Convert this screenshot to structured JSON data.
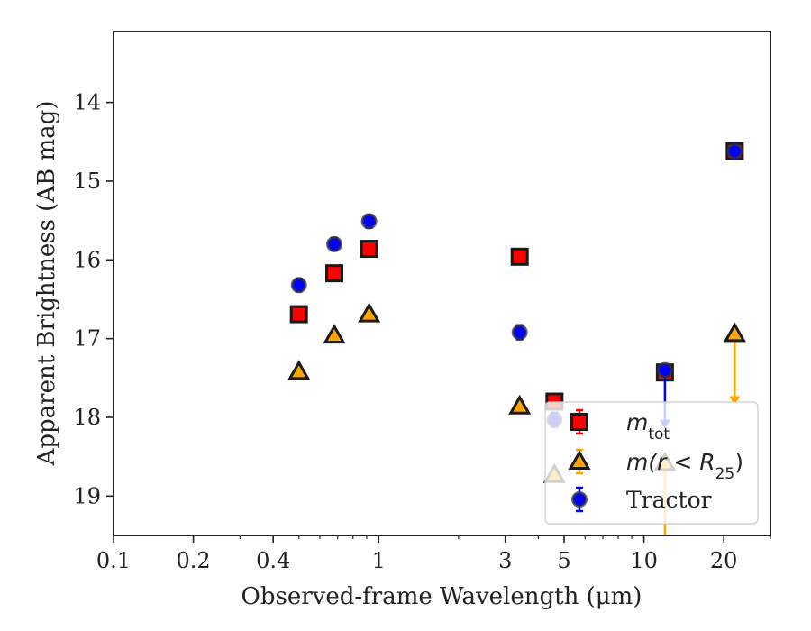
{
  "colors": {
    "m_tot_face": "#ff0000",
    "m_tot_edge": "#1a1a1a",
    "m_r25_face": "#ffa500",
    "m_r25_edge": "#1a1a1a",
    "tractor_face": "#0000ff",
    "tractor_edge": "#333333",
    "axis": "#222222"
  },
  "chart_data": {
    "type": "scatter",
    "title": "",
    "xlabel": "Observed-frame Wavelength (μm)",
    "ylabel": "Apparent Brightness (AB mag)",
    "xscale": "log",
    "xlim": [
      0.1,
      30
    ],
    "ylim": [
      19.5,
      13.1
    ],
    "y_inverted": true,
    "xticks": [
      {
        "value": 0.1,
        "label": "0.1"
      },
      {
        "value": 0.2,
        "label": "0.2"
      },
      {
        "value": 0.4,
        "label": "0.4"
      },
      {
        "value": 1,
        "label": "1"
      },
      {
        "value": 3,
        "label": "3"
      },
      {
        "value": 5,
        "label": "5"
      },
      {
        "value": 10,
        "label": "10"
      },
      {
        "value": 20,
        "label": "20"
      }
    ],
    "yticks": [
      {
        "value": 14,
        "label": "14"
      },
      {
        "value": 15,
        "label": "15"
      },
      {
        "value": 16,
        "label": "16"
      },
      {
        "value": 17,
        "label": "17"
      },
      {
        "value": 18,
        "label": "18"
      },
      {
        "value": 19,
        "label": "19"
      }
    ],
    "legend_position": "bottom-right",
    "series": [
      {
        "name": "m_tot",
        "legend_label": "m_tot",
        "marker": "square",
        "face_color": "#ff0000",
        "points": [
          {
            "x": 0.5,
            "y": 16.69,
            "err": 0.06
          },
          {
            "x": 0.68,
            "y": 16.17,
            "err": 0.06
          },
          {
            "x": 0.92,
            "y": 15.86,
            "err": 0.05
          },
          {
            "x": 3.4,
            "y": 15.96,
            "err": 0.05
          },
          {
            "x": 4.6,
            "y": 17.8,
            "err": 0.06
          },
          {
            "x": 12.0,
            "y": 17.43,
            "err": 0.08
          },
          {
            "x": 22.0,
            "y": 14.62,
            "err": 0.06
          }
        ]
      },
      {
        "name": "m_r25",
        "legend_label": "m(r < R25)",
        "marker": "triangle",
        "face_color": "#ffa500",
        "points": [
          {
            "x": 0.5,
            "y": 17.42,
            "err": 0.04
          },
          {
            "x": 0.68,
            "y": 16.96,
            "err": 0.04
          },
          {
            "x": 0.92,
            "y": 16.69,
            "err": 0.04
          },
          {
            "x": 3.4,
            "y": 17.86,
            "err": 0.05
          },
          {
            "x": 4.6,
            "y": 18.73,
            "err": 0.06
          },
          {
            "x": 12.0,
            "y": 18.58,
            "upper_limit": true
          },
          {
            "x": 22.0,
            "y": 16.94,
            "upper_limit": true,
            "limit_to": 17.8
          }
        ]
      },
      {
        "name": "Tractor",
        "legend_label": "Tractor",
        "marker": "circle",
        "face_color": "#0000ff",
        "points": [
          {
            "x": 0.5,
            "y": 16.32,
            "err": 0.08
          },
          {
            "x": 0.68,
            "y": 15.8,
            "err": 0.08
          },
          {
            "x": 0.92,
            "y": 15.51,
            "err": 0.08
          },
          {
            "x": 3.4,
            "y": 16.92,
            "err": 0.09
          },
          {
            "x": 4.6,
            "y": 18.03,
            "err": 0.09
          },
          {
            "x": 12.0,
            "y": 17.4,
            "upper_limit": true,
            "limit_to": 18.1
          },
          {
            "x": 22.0,
            "y": 14.62,
            "err": 0.09
          }
        ]
      }
    ],
    "legend": [
      {
        "series": "m_tot",
        "prefix": "m",
        "subscript": "tot",
        "suffix": ""
      },
      {
        "series": "m_r25",
        "prefix": "m(r < R",
        "subscript": "25",
        "suffix": ")"
      },
      {
        "series": "Tractor",
        "prefix": "Tractor",
        "subscript": "",
        "suffix": ""
      }
    ]
  }
}
